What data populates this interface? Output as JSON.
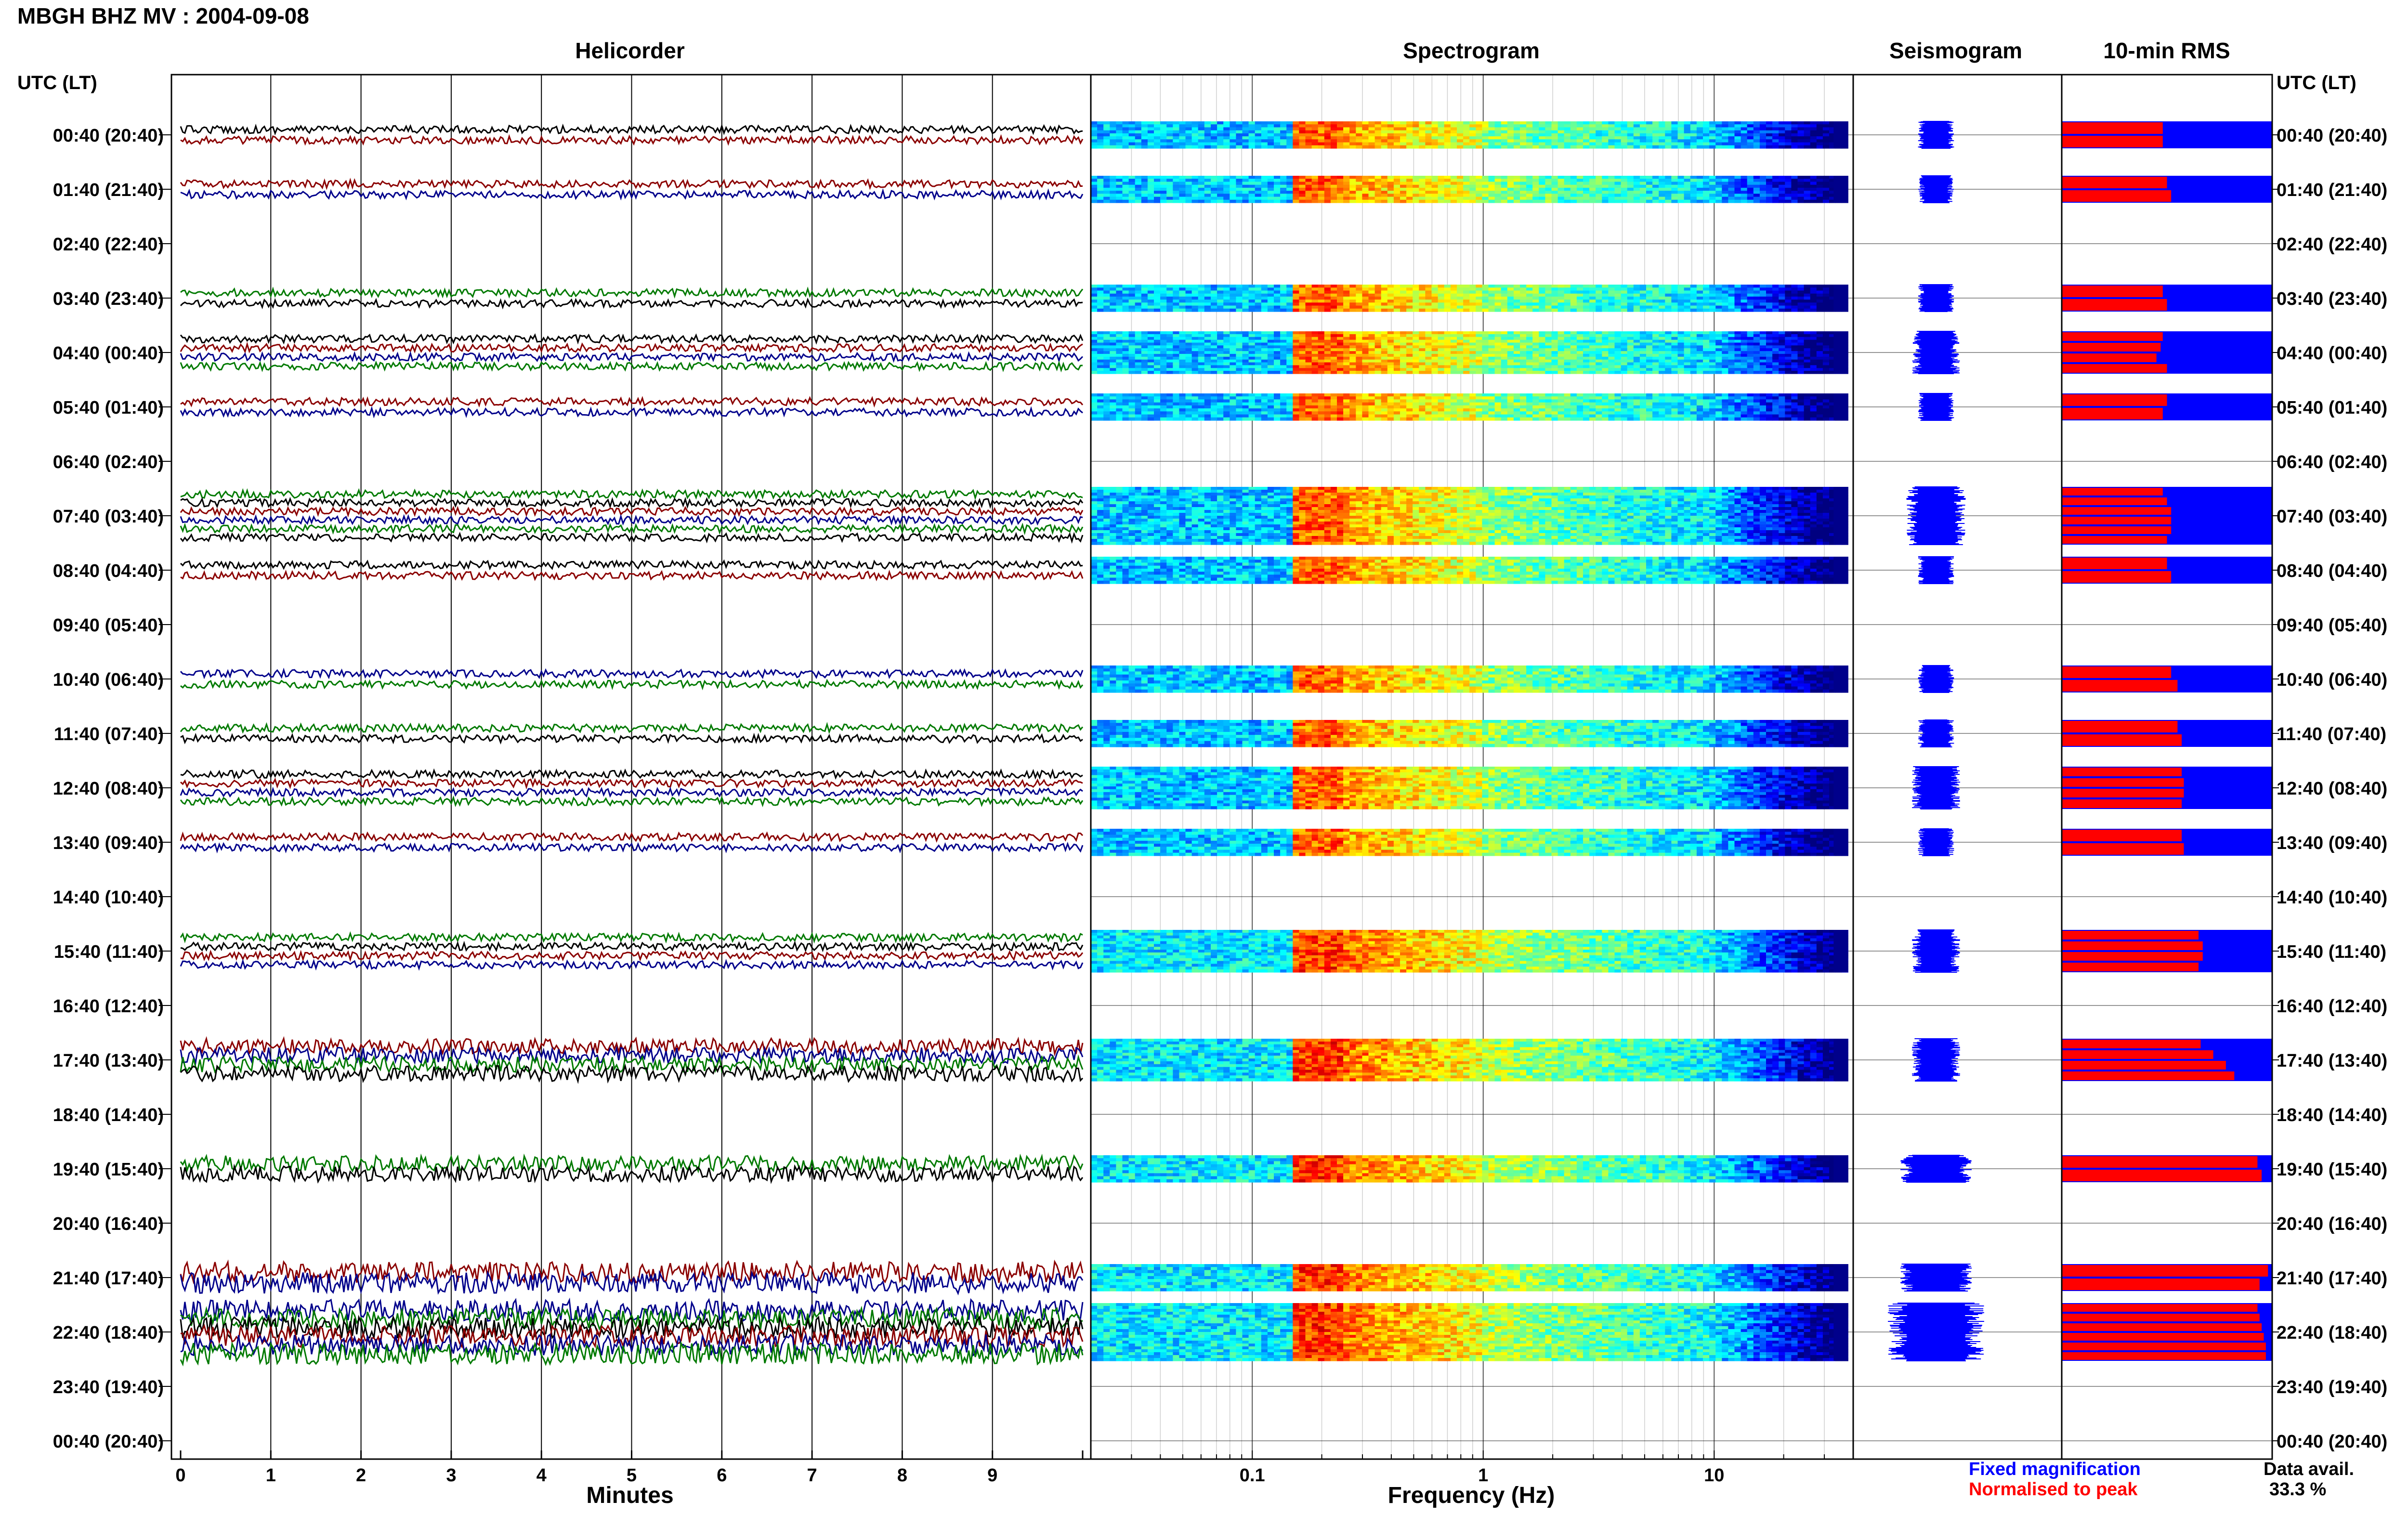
{
  "title": "MBGH BHZ MV : 2004-09-08",
  "panels": {
    "helicorder": "Helicorder",
    "spectrogram": "Spectrogram",
    "seismogram": "Seismogram",
    "rms": "10-min RMS"
  },
  "axis": {
    "utc_lt_label": "UTC (LT)",
    "minutes_label": "Minutes",
    "frequency_label": "Frequency (Hz)",
    "minute_ticks": [
      "0",
      "1",
      "2",
      "3",
      "4",
      "5",
      "6",
      "7",
      "8",
      "9"
    ],
    "frequency_ticks": [
      "0.1",
      "1",
      "10"
    ]
  },
  "legend": {
    "fixed": "Fixed magnification",
    "normalised": "Normalised to peak"
  },
  "data_avail": {
    "label": "Data avail.",
    "value": "33.3 %"
  },
  "colors": {
    "fixed": "#0000ff",
    "normalised": "#ff0000",
    "trace_black": "#000000",
    "trace_red": "#8b0000",
    "trace_blue": "#00008b",
    "trace_green": "#007a00",
    "grid": "#000000"
  },
  "chart_data": {
    "type": "heatmap",
    "title": "MBGH BHZ MV : 2004-09-08",
    "xlabel": "Minutes",
    "x_range_minutes": [
      0,
      10
    ],
    "spectrogram_xlabel": "Frequency (Hz)",
    "spectrogram_scale": "log",
    "spectrogram_range_hz": [
      0.02,
      40
    ],
    "hour_labels": [
      "00:40 (20:40)",
      "01:40 (21:40)",
      "02:40 (22:40)",
      "03:40 (23:40)",
      "04:40 (00:40)",
      "05:40 (01:40)",
      "06:40 (02:40)",
      "07:40 (03:40)",
      "08:40 (04:40)",
      "09:40 (05:40)",
      "10:40 (06:40)",
      "11:40 (07:40)",
      "12:40 (08:40)",
      "13:40 (09:40)",
      "14:40 (10:40)",
      "15:40 (11:40)",
      "16:40 (12:40)",
      "17:40 (13:40)",
      "18:40 (14:40)",
      "19:40 (15:40)",
      "20:40 (16:40)",
      "21:40 (17:40)",
      "22:40 (18:40)",
      "23:40 (19:40)",
      "00:40 (20:40)"
    ],
    "hours": [
      {
        "hour": 0,
        "segments": 2,
        "rms_fixed": [
          0.48,
          0.48
        ],
        "rms_norm": 0.48
      },
      {
        "hour": 1,
        "segments": 2,
        "rms_fixed": [
          0.5,
          0.52
        ],
        "rms_norm": 0.5
      },
      {
        "hour": 2,
        "segments": 0,
        "rms_fixed": [],
        "rms_norm": 0
      },
      {
        "hour": 3,
        "segments": 2,
        "rms_fixed": [
          0.48,
          0.5
        ],
        "rms_norm": 0.48
      },
      {
        "hour": 4,
        "segments": 4,
        "rms_fixed": [
          0.48,
          0.47,
          0.45,
          0.5
        ],
        "rms_norm": 0.48
      },
      {
        "hour": 5,
        "segments": 2,
        "rms_fixed": [
          0.5,
          0.48
        ],
        "rms_norm": 0.5
      },
      {
        "hour": 6,
        "segments": 0,
        "rms_fixed": [],
        "rms_norm": 0
      },
      {
        "hour": 7,
        "segments": 6,
        "rms_fixed": [
          0.48,
          0.5,
          0.52,
          0.52,
          0.52,
          0.5
        ],
        "rms_norm": 0.52
      },
      {
        "hour": 8,
        "segments": 2,
        "rms_fixed": [
          0.5,
          0.52
        ],
        "rms_norm": 0.5
      },
      {
        "hour": 9,
        "segments": 0,
        "rms_fixed": [],
        "rms_norm": 0
      },
      {
        "hour": 10,
        "segments": 2,
        "rms_fixed": [
          0.52,
          0.55
        ],
        "rms_norm": 0.52
      },
      {
        "hour": 11,
        "segments": 2,
        "rms_fixed": [
          0.55,
          0.57
        ],
        "rms_norm": 0.55
      },
      {
        "hour": 12,
        "segments": 4,
        "rms_fixed": [
          0.57,
          0.58,
          0.58,
          0.57
        ],
        "rms_norm": 0.58
      },
      {
        "hour": 13,
        "segments": 2,
        "rms_fixed": [
          0.57,
          0.58
        ],
        "rms_norm": 0.57
      },
      {
        "hour": 14,
        "segments": 0,
        "rms_fixed": [],
        "rms_norm": 0
      },
      {
        "hour": 15,
        "segments": 4,
        "rms_fixed": [
          0.65,
          0.67,
          0.67,
          0.65
        ],
        "rms_norm": 0.66
      },
      {
        "hour": 16,
        "segments": 0,
        "rms_fixed": [],
        "rms_norm": 0
      },
      {
        "hour": 17,
        "segments": 4,
        "rms_fixed": [
          0.66,
          0.72,
          0.78,
          0.82
        ],
        "rms_norm": 0.75
      },
      {
        "hour": 18,
        "segments": 0,
        "rms_fixed": [],
        "rms_norm": 0
      },
      {
        "hour": 19,
        "segments": 2,
        "rms_fixed": [
          0.93,
          0.95
        ],
        "rms_norm": 0.94
      },
      {
        "hour": 20,
        "segments": 0,
        "rms_fixed": [],
        "rms_norm": 0
      },
      {
        "hour": 21,
        "segments": 2,
        "rms_fixed": [
          0.98,
          0.94
        ],
        "rms_norm": 0.96
      },
      {
        "hour": 22,
        "segments": 6,
        "rms_fixed": [
          0.93,
          0.94,
          0.95,
          0.96,
          0.97,
          0.97
        ],
        "rms_norm": 0.96
      },
      {
        "hour": 23,
        "segments": 0,
        "rms_fixed": [],
        "rms_norm": 0
      }
    ],
    "data_availability_percent": 33.3
  }
}
